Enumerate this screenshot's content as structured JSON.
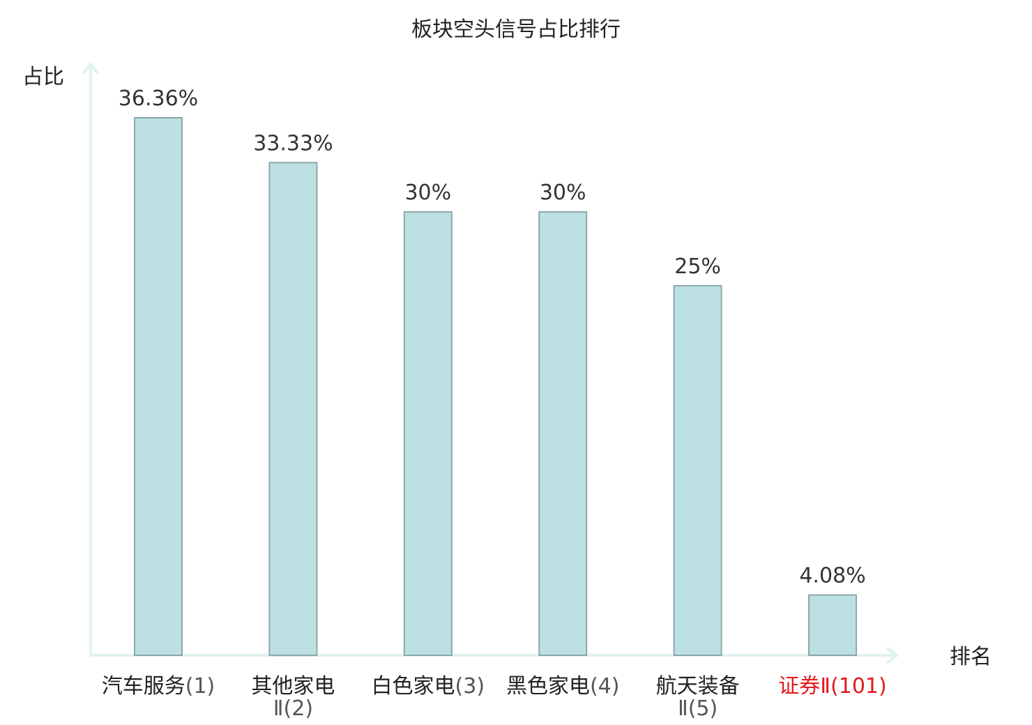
{
  "chart_data": {
    "type": "bar",
    "title": "板块空头信号占比排行",
    "ylabel": "占比",
    "xlabel": "排名",
    "categories": [
      {
        "name": "汽车服务",
        "rank": "(1)",
        "highlight": false
      },
      {
        "name": "其他家电",
        "rank": "Ⅱ(2)",
        "highlight": false
      },
      {
        "name": "白色家电",
        "rank": "(3)",
        "highlight": false
      },
      {
        "name": "黑色家电",
        "rank": "(4)",
        "highlight": false
      },
      {
        "name": "航天装备",
        "rank": "Ⅱ(5)",
        "highlight": false
      },
      {
        "name": "证券",
        "rank": "Ⅱ(101)",
        "highlight": true
      }
    ],
    "values": [
      36.36,
      33.33,
      30,
      30,
      25,
      4.08
    ],
    "value_labels": [
      "36.36%",
      "33.33%",
      "30%",
      "30%",
      "25%",
      "4.08%"
    ],
    "ylim": [
      0,
      40
    ],
    "grid": false,
    "legend": "none",
    "colors": {
      "bar_fill": "#bde0e3",
      "bar_stroke": "#8aa8aa",
      "axis": "#dff2ef",
      "highlight_label": "#e41a1c"
    }
  }
}
